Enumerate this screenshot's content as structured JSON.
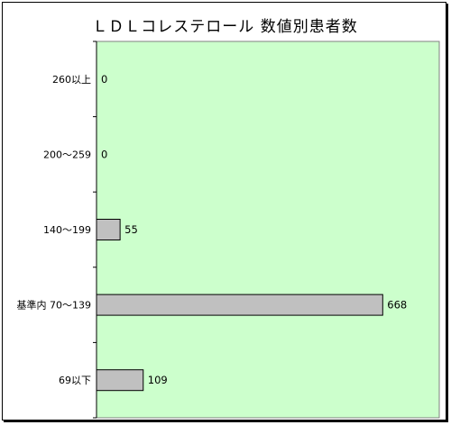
{
  "chart_data": {
    "type": "bar",
    "orientation": "horizontal",
    "title": "ＬＤＬコレステロール 数値別患者数",
    "categories": [
      "260以上",
      "200～259",
      "140～199",
      "基準内 70～139",
      "69以下"
    ],
    "values": [
      0,
      0,
      55,
      668,
      109
    ],
    "xlim": [
      0,
      800
    ],
    "xlabel": "",
    "ylabel": "",
    "grid": false,
    "legend": "none",
    "colors": {
      "plot_background": "#ccffcc",
      "bar_fill": "#c0c0c0",
      "bar_stroke": "#000000"
    }
  }
}
